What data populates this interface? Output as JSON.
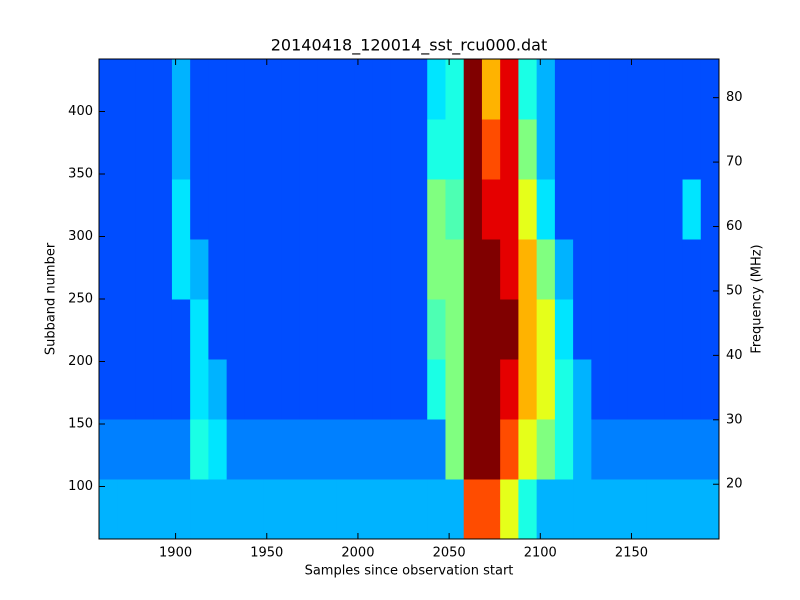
{
  "chart_data": {
    "type": "heatmap",
    "title": "20140418_120014_sst_rcu000.dat",
    "xlabel": "Samples since observation start",
    "ylabel": "Subband number",
    "y2label": "Frequency (MHz)",
    "colormap": "jet",
    "clim": [
      0,
      10
    ],
    "xlim": [
      1858,
      2198
    ],
    "ylim": [
      58,
      442
    ],
    "y2lim": [
      11.5,
      86
    ],
    "xticks": [
      1900,
      1950,
      2000,
      2050,
      2100,
      2150
    ],
    "yticks": [
      100,
      150,
      200,
      250,
      300,
      350,
      400
    ],
    "y2ticks": [
      20,
      30,
      40,
      50,
      60,
      70,
      80
    ],
    "x_bins": [
      1858,
      1868,
      1878,
      1888,
      1898,
      1908,
      1918,
      1928,
      1938,
      1948,
      1958,
      1968,
      1978,
      1988,
      1998,
      2008,
      2018,
      2028,
      2038,
      2048,
      2058,
      2068,
      2078,
      2088,
      2098,
      2108,
      2118,
      2128,
      2138,
      2148,
      2158,
      2168,
      2178,
      2188,
      2198
    ],
    "y_bins": [
      58,
      106,
      154,
      202,
      250,
      298,
      346,
      394,
      442
    ],
    "values": [
      [
        3,
        3,
        3,
        3,
        3,
        3,
        3,
        3,
        3,
        3,
        3,
        3,
        3,
        3,
        3,
        3,
        3,
        3,
        3,
        3,
        8,
        8,
        6,
        4,
        3,
        3,
        3,
        3,
        3,
        3,
        3,
        3,
        3,
        3
      ],
      [
        2.5,
        2.5,
        2.5,
        2.5,
        2.5,
        4,
        3.5,
        2.5,
        2.5,
        2.5,
        2.5,
        2.5,
        2.5,
        2.5,
        2.5,
        2.5,
        2.5,
        2.5,
        2.5,
        5,
        10,
        10,
        8,
        6,
        5,
        4,
        3,
        2.5,
        2.5,
        2.5,
        2.5,
        2.5,
        2.5,
        2.5
      ],
      [
        2,
        2,
        2,
        2,
        2,
        3.5,
        3,
        2,
        2,
        2,
        2,
        2,
        2,
        2,
        2,
        2,
        2,
        2,
        4,
        5,
        10,
        10,
        9,
        7,
        6,
        4,
        3,
        2,
        2,
        2,
        2,
        2,
        2,
        2
      ],
      [
        2,
        2,
        2,
        2,
        2,
        3.5,
        2,
        2,
        2,
        2,
        2,
        2,
        2,
        2,
        2,
        2,
        2,
        2,
        4.5,
        5,
        10,
        10,
        10,
        7,
        6,
        3.5,
        2,
        2,
        2,
        2,
        2,
        2,
        2,
        2
      ],
      [
        2,
        2,
        2,
        2,
        3.5,
        3,
        2,
        2,
        2,
        2,
        2,
        2,
        2,
        2,
        2,
        2,
        2,
        2,
        5,
        5,
        10,
        10,
        9,
        7,
        5,
        3,
        2,
        2,
        2,
        2,
        2,
        2,
        2,
        2
      ],
      [
        2,
        2,
        2,
        2,
        3.5,
        2,
        2,
        2,
        2,
        2,
        2,
        2,
        2,
        2,
        2,
        2,
        2,
        2,
        5,
        4.5,
        10,
        9,
        9,
        6,
        3.5,
        2,
        2,
        2,
        2,
        2,
        2,
        2,
        3.5,
        2
      ],
      [
        2,
        2,
        2,
        2,
        3,
        2,
        2,
        2,
        2,
        2,
        2,
        2,
        2,
        2,
        2,
        2,
        2,
        2,
        4,
        4,
        10,
        8,
        9,
        5,
        3,
        2,
        2,
        2,
        2,
        2,
        2,
        2,
        2,
        2
      ],
      [
        2,
        2,
        2,
        2,
        3,
        2,
        2,
        2,
        2,
        2,
        2,
        2,
        2,
        2,
        2,
        2,
        2,
        2,
        3.5,
        4,
        10,
        7,
        9,
        4,
        3,
        2,
        2,
        2,
        2,
        2,
        2,
        2,
        2,
        2
      ]
    ]
  }
}
